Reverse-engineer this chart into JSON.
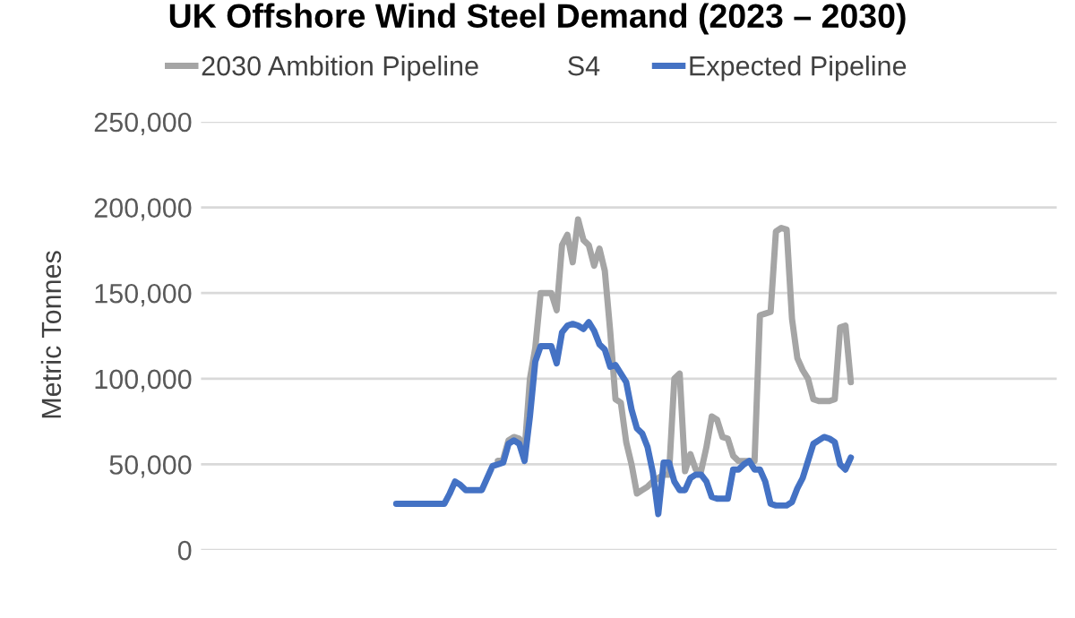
{
  "chart_data": {
    "type": "line",
    "title": "UK Offshore Wind Steel Demand (2023 – 2030)",
    "ylabel": "Metric Tonnes",
    "categories": [
      null,
      null,
      null,
      null,
      null,
      null,
      null,
      null,
      null,
      null,
      null,
      null,
      null,
      null,
      null,
      null,
      null,
      null,
      null,
      null,
      null,
      null,
      null,
      null,
      null,
      null,
      null,
      null,
      null,
      null,
      null,
      null,
      null,
      null,
      null,
      null,
      null,
      null,
      null,
      null,
      null,
      null,
      null,
      null,
      null,
      null,
      null,
      null,
      null,
      null,
      null,
      null,
      null,
      null,
      null,
      null,
      null,
      null,
      null,
      null,
      null,
      null,
      null,
      null,
      null,
      null,
      null,
      null,
      null,
      null,
      null,
      null,
      null,
      null,
      null,
      null,
      null,
      null,
      null,
      null,
      null,
      null,
      null,
      null,
      null,
      null,
      null,
      null,
      null,
      null,
      null,
      null,
      null,
      null,
      null,
      null,
      null,
      null,
      null,
      null,
      null,
      null,
      null,
      null,
      null,
      null,
      null,
      null,
      null,
      null,
      null,
      null,
      null,
      null,
      null,
      null,
      null,
      null,
      null,
      null,
      null,
      null,
      null,
      null,
      null,
      null,
      null,
      null,
      null,
      null,
      null,
      null,
      null,
      null,
      null,
      null,
      null,
      null,
      null,
      null,
      null,
      null,
      null,
      null,
      null,
      null,
      null,
      null,
      null,
      null,
      null,
      null,
      null,
      null,
      null,
      null,
      null,
      null,
      null,
      null
    ],
    "series": [
      {
        "name": "2030 Ambition Pipeline",
        "color": "#a5a5a5",
        "values": [
          null,
          null,
          null,
          null,
          null,
          null,
          null,
          null,
          null,
          null,
          null,
          null,
          null,
          null,
          null,
          null,
          null,
          null,
          null,
          null,
          null,
          null,
          null,
          null,
          null,
          null,
          null,
          null,
          null,
          null,
          null,
          null,
          null,
          null,
          null,
          null,
          null,
          null,
          null,
          null,
          null,
          null,
          null,
          null,
          null,
          null,
          null,
          null,
          null,
          null,
          null,
          null,
          null,
          null,
          null,
          52000,
          53000,
          64000,
          66000,
          65000,
          58000,
          100000,
          118000,
          150000,
          150000,
          150000,
          140000,
          178000,
          184000,
          168000,
          193000,
          181000,
          178000,
          166000,
          176000,
          163000,
          128000,
          88000,
          86000,
          63000,
          50000,
          33000,
          35000,
          37000,
          40000,
          42000,
          44000,
          44000,
          100000,
          103000,
          46000,
          56000,
          47000,
          46000,
          60000,
          78000,
          76000,
          66000,
          65000,
          55000,
          52000,
          52000,
          52000,
          52000,
          137000,
          138000,
          139000,
          186000,
          188000,
          187000,
          135000,
          112000,
          105000,
          100000,
          88000,
          87000,
          87000,
          87000,
          88000,
          130000,
          131000,
          98000,
          null,
          null,
          null,
          null,
          null,
          null,
          null,
          null,
          null,
          null,
          null,
          null,
          null,
          null,
          null,
          null,
          null,
          null,
          null,
          null,
          null,
          null,
          null,
          null,
          null,
          null,
          null,
          null,
          null,
          null,
          null,
          null,
          null,
          null,
          null,
          null,
          null,
          null
        ]
      },
      {
        "name": "S4",
        "values": [
          null,
          null,
          null,
          null,
          null,
          null,
          null,
          null,
          null,
          null,
          null,
          null,
          null,
          null,
          null,
          null,
          null,
          null,
          null,
          null,
          null,
          null,
          null,
          null,
          null,
          null,
          null,
          null,
          null,
          null,
          null,
          null,
          null,
          null,
          null,
          null,
          null,
          null,
          null,
          null,
          null,
          null,
          null,
          null,
          null,
          null,
          null,
          null,
          null,
          null,
          null,
          null,
          null,
          null,
          null,
          null,
          null,
          null,
          null,
          null,
          null,
          null,
          null,
          null,
          null,
          null,
          null,
          null,
          null,
          null,
          null,
          null,
          null,
          null,
          null,
          null,
          null,
          null,
          null,
          null,
          null,
          null,
          null,
          null,
          null,
          null,
          null,
          null,
          null,
          null,
          null,
          null,
          null,
          null,
          null,
          null,
          null,
          null,
          null,
          null,
          null,
          null,
          null,
          null,
          null,
          null,
          null,
          null,
          null,
          null,
          null,
          null,
          null,
          null,
          null,
          null,
          null,
          null,
          null,
          null,
          null,
          null,
          null,
          null,
          null,
          null,
          null,
          null,
          null,
          null,
          null,
          null,
          null,
          null,
          null,
          null,
          null,
          null,
          null,
          null,
          null,
          null,
          null,
          null,
          null,
          null,
          null,
          null,
          null,
          null,
          null,
          null,
          null,
          null,
          null,
          null,
          null,
          null,
          null,
          null
        ]
      },
      {
        "name": "Expected Pipeline",
        "color": "#4472c4",
        "values": [
          null,
          null,
          null,
          null,
          null,
          null,
          null,
          null,
          null,
          null,
          null,
          null,
          null,
          null,
          null,
          null,
          null,
          null,
          null,
          null,
          null,
          null,
          null,
          null,
          null,
          null,
          null,
          null,
          null,
          null,
          null,
          null,
          null,
          null,
          null,
          null,
          27000,
          27000,
          27000,
          27000,
          27000,
          27000,
          27000,
          27000,
          27000,
          27000,
          33000,
          40000,
          38000,
          35000,
          35000,
          35000,
          35000,
          42000,
          49000,
          50000,
          51000,
          62000,
          64000,
          62000,
          52000,
          78000,
          110000,
          119000,
          119000,
          119000,
          109000,
          127000,
          131000,
          132000,
          131000,
          129000,
          133000,
          128000,
          120000,
          117000,
          107000,
          108000,
          103000,
          98000,
          82000,
          71000,
          68000,
          60000,
          45000,
          21000,
          51000,
          51000,
          40000,
          35000,
          35000,
          42000,
          44000,
          44000,
          40000,
          31000,
          30000,
          30000,
          30000,
          47000,
          47000,
          50000,
          52000,
          47000,
          47000,
          40000,
          27000,
          26000,
          26000,
          26000,
          28000,
          36000,
          42000,
          52000,
          62000,
          64000,
          66000,
          65000,
          63000,
          50000,
          47000,
          54000,
          null,
          null,
          null,
          null,
          null,
          null,
          null,
          null,
          null,
          null,
          null,
          null,
          null,
          null,
          null,
          null,
          null,
          null,
          null,
          null,
          null,
          null,
          null,
          null,
          null,
          null,
          null,
          null,
          null,
          null,
          null,
          null,
          null,
          null,
          null,
          null,
          null,
          null
        ]
      }
    ],
    "ylim": [
      0,
      250000
    ],
    "yticks": [
      0,
      {
        "value": 50000,
        "label": "50,000"
      },
      {
        "value": 100000,
        "label": "100,000"
      },
      {
        "value": 150000,
        "label": "150,000"
      },
      {
        "value": 200000,
        "label": "200,000"
      },
      {
        "value": 250000,
        "label": "250,000"
      }
    ],
    "grid": "y",
    "legend": "top",
    "line_style": "solid",
    "marker": "none"
  }
}
